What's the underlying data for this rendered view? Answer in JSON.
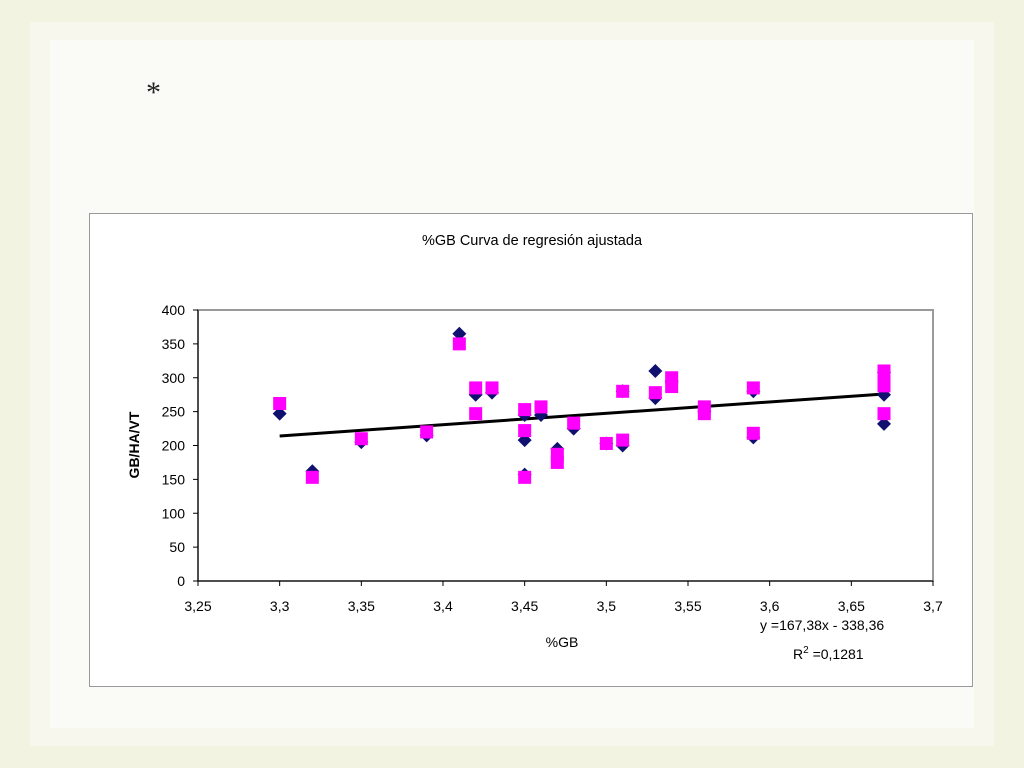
{
  "slide": {
    "bullet": "*"
  },
  "colors": {
    "series_a": "#101070",
    "series_b": "#ff00ff",
    "trend": "#000000"
  },
  "chart_data": {
    "type": "scatter",
    "title": "%GB Curva de regresión ajustada",
    "xlabel": "%GB",
    "ylabel": "GB/HA/VT",
    "xlim": [
      3.25,
      3.7
    ],
    "ylim": [
      0,
      400
    ],
    "x_ticks": [
      "3,25",
      "3,3",
      "3,35",
      "3,4",
      "3,45",
      "3,5",
      "3,55",
      "3,6",
      "3,65",
      "3,7"
    ],
    "y_ticks": [
      "0",
      "50",
      "100",
      "150",
      "200",
      "250",
      "300",
      "350",
      "400"
    ],
    "grid": false,
    "series": [
      {
        "marker": "diamond",
        "color": "#101070",
        "points": [
          [
            3.3,
            247
          ],
          [
            3.32,
            162
          ],
          [
            3.35,
            205
          ],
          [
            3.39,
            215
          ],
          [
            3.41,
            365
          ],
          [
            3.42,
            275
          ],
          [
            3.43,
            278
          ],
          [
            3.45,
            208
          ],
          [
            3.45,
            157
          ],
          [
            3.45,
            245
          ],
          [
            3.46,
            245
          ],
          [
            3.47,
            195
          ],
          [
            3.48,
            225
          ],
          [
            3.5,
            203
          ],
          [
            3.51,
            280
          ],
          [
            3.51,
            200
          ],
          [
            3.53,
            310
          ],
          [
            3.53,
            270
          ],
          [
            3.54,
            295
          ],
          [
            3.56,
            250
          ],
          [
            3.59,
            280
          ],
          [
            3.59,
            212
          ],
          [
            3.67,
            308
          ],
          [
            3.67,
            275
          ],
          [
            3.67,
            232
          ]
        ]
      },
      {
        "marker": "square",
        "color": "#ff00ff",
        "points": [
          [
            3.3,
            262
          ],
          [
            3.32,
            153
          ],
          [
            3.35,
            210
          ],
          [
            3.39,
            220
          ],
          [
            3.41,
            350
          ],
          [
            3.42,
            285
          ],
          [
            3.42,
            247
          ],
          [
            3.43,
            285
          ],
          [
            3.45,
            253
          ],
          [
            3.45,
            222
          ],
          [
            3.45,
            153
          ],
          [
            3.46,
            257
          ],
          [
            3.47,
            175
          ],
          [
            3.47,
            187
          ],
          [
            3.48,
            233
          ],
          [
            3.5,
            203
          ],
          [
            3.51,
            280
          ],
          [
            3.51,
            208
          ],
          [
            3.53,
            278
          ],
          [
            3.54,
            300
          ],
          [
            3.54,
            287
          ],
          [
            3.56,
            257
          ],
          [
            3.56,
            247
          ],
          [
            3.59,
            285
          ],
          [
            3.59,
            218
          ],
          [
            3.67,
            310
          ],
          [
            3.67,
            300
          ],
          [
            3.67,
            288
          ],
          [
            3.67,
            247
          ]
        ]
      }
    ],
    "trendline": {
      "x": [
        3.3,
        3.67
      ],
      "y": [
        214,
        276
      ],
      "equation": "y =167,38x - 338,36",
      "r2_label": "R",
      "r2_sup": "2",
      "r2_value": " =0,1281"
    }
  }
}
